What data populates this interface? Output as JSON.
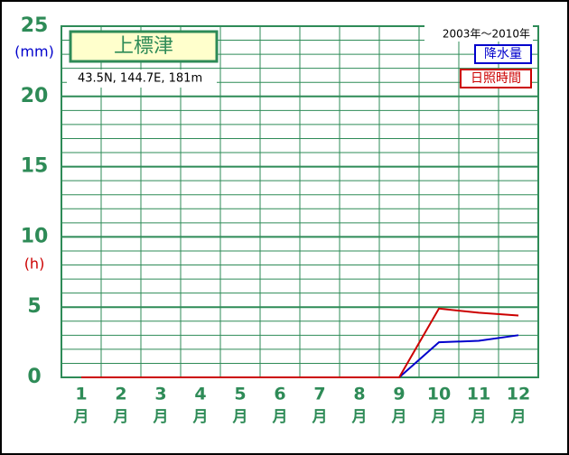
{
  "chart_data": {
    "type": "line",
    "title": "上標津",
    "location": "43.5N,  144.7E,  181m",
    "period": "2003年～2010年",
    "y_unit_left": "(mm)",
    "y_unit_right": "(h)",
    "categories": [
      "1",
      "2",
      "3",
      "4",
      "5",
      "6",
      "7",
      "8",
      "9",
      "10",
      "11",
      "12"
    ],
    "category_unit": "月",
    "series": [
      {
        "name": "降水量",
        "color": "#0000cc",
        "values": [
          0,
          0,
          0,
          0,
          0,
          0,
          0,
          0,
          0,
          2.5,
          2.6,
          3.0
        ]
      },
      {
        "name": "日照時間",
        "color": "#cc0000",
        "values": [
          0,
          0,
          0,
          0,
          0,
          0,
          0,
          0,
          0,
          4.9,
          4.6,
          4.4
        ]
      }
    ],
    "ylim": [
      0,
      25
    ],
    "yticks": [
      0,
      5,
      10,
      15,
      20,
      25
    ],
    "grid": true,
    "minor_grid_step": 1,
    "legend": "top-right",
    "grid_color": "#2e8b57"
  }
}
